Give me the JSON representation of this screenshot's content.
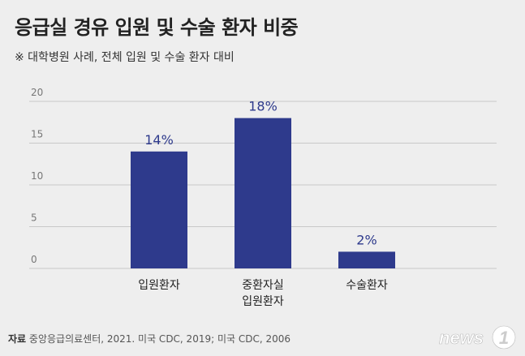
{
  "header": {
    "title": "응급실 경유 입원 및 수술 환자 비중",
    "subtitle": "※ 대학병원 사례, 전체 입원 및 수술 환자 대비"
  },
  "footer": {
    "source_label": "자료",
    "source_text": "중앙응급의료센터, 2021. 미국 CDC, 2019; 미국 CDC, 2006"
  },
  "logo": {
    "text": "news1"
  },
  "colors": {
    "bar": "#2e3a8c",
    "grid": "#c8c8c8",
    "value_label": "#2e3a8c"
  },
  "chart_data": {
    "type": "bar",
    "categories": [
      [
        "입원환자"
      ],
      [
        "중환자실",
        "입원환자"
      ],
      [
        "수술환자"
      ]
    ],
    "values": [
      14,
      18,
      2
    ],
    "value_labels": [
      "14%",
      "18%",
      "2%"
    ],
    "yticks": [
      0,
      5,
      10,
      15,
      20
    ],
    "ylim": [
      0,
      20
    ],
    "grid": true,
    "title": "응급실 경유 입원 및 수술 환자 비중",
    "xlabel": "",
    "ylabel": ""
  }
}
